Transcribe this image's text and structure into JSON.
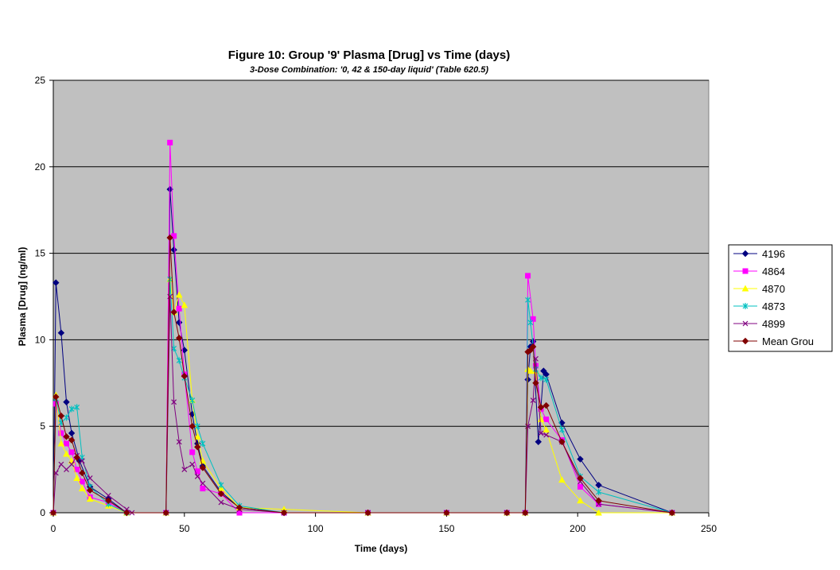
{
  "chart_data": {
    "type": "line",
    "title": "Figure 10: Group '9' Plasma [Drug] vs Time (days)",
    "subtitle": "3-Dose Combination: '0, 42 & 150-day  liquid' (Table 620.5)",
    "xlabel": "Time (days)",
    "ylabel": "Plasma [Drug] (ng/ml)",
    "xlim": [
      0,
      250
    ],
    "ylim": [
      0,
      25
    ],
    "x_ticks": [
      0,
      50,
      100,
      150,
      200,
      250
    ],
    "y_ticks": [
      0,
      5,
      10,
      15,
      20,
      25
    ],
    "x_tick_labels": [
      "0",
      "50",
      "100",
      "150",
      "200",
      "250"
    ],
    "y_tick_labels": [
      "0",
      "5",
      "10",
      "15",
      "20",
      "25"
    ],
    "grid": "horizontal major gridlines",
    "legend_position": "right",
    "plot_background": "#c0c0c0",
    "series": [
      {
        "name": "4196",
        "color": "#000080",
        "marker": "diamond",
        "points": [
          [
            0,
            0
          ],
          [
            1,
            13.3
          ],
          [
            3,
            10.4
          ],
          [
            5,
            6.4
          ],
          [
            7,
            4.6
          ],
          [
            10,
            3.0
          ],
          [
            14,
            1.5
          ],
          [
            21,
            0.8
          ],
          [
            28,
            0
          ],
          [
            43,
            0
          ],
          [
            44.5,
            18.7
          ],
          [
            46,
            15.2
          ],
          [
            48,
            11.0
          ],
          [
            50,
            9.4
          ],
          [
            53,
            5.7
          ],
          [
            55,
            4.0
          ],
          [
            57,
            2.7
          ],
          [
            64,
            1.2
          ],
          [
            71,
            0.3
          ],
          [
            88,
            0
          ],
          [
            120,
            0
          ],
          [
            150,
            0
          ],
          [
            173,
            0
          ],
          [
            180,
            0
          ],
          [
            181,
            7.7
          ],
          [
            182,
            9.6
          ],
          [
            183,
            9.9
          ],
          [
            185,
            4.1
          ],
          [
            187,
            8.2
          ],
          [
            188,
            8.0
          ],
          [
            194,
            5.2
          ],
          [
            201,
            3.1
          ],
          [
            208,
            1.6
          ],
          [
            236,
            0
          ]
        ]
      },
      {
        "name": "4864",
        "color": "#ff00ff",
        "marker": "square",
        "points": [
          [
            0,
            0
          ],
          [
            1,
            6.3
          ],
          [
            3,
            4.6
          ],
          [
            5,
            4.0
          ],
          [
            7,
            3.5
          ],
          [
            9,
            2.5
          ],
          [
            11,
            1.8
          ],
          [
            14,
            0.9
          ],
          [
            21,
            0.6
          ],
          [
            28,
            0
          ],
          [
            43,
            0
          ],
          [
            44.5,
            21.4
          ],
          [
            46,
            16.0
          ],
          [
            48,
            11.8
          ],
          [
            50,
            8.0
          ],
          [
            53,
            3.5
          ],
          [
            55,
            2.4
          ],
          [
            57,
            1.4
          ],
          [
            64,
            1.1
          ],
          [
            71,
            0
          ],
          [
            88,
            0
          ],
          [
            120,
            0
          ],
          [
            150,
            0
          ],
          [
            173,
            0
          ],
          [
            180,
            0
          ],
          [
            181,
            13.7
          ],
          [
            183,
            11.2
          ],
          [
            184,
            8.5
          ],
          [
            186,
            6.0
          ],
          [
            188,
            5.4
          ],
          [
            194,
            4.2
          ],
          [
            201,
            1.5
          ],
          [
            208,
            0.5
          ],
          [
            236,
            0
          ]
        ]
      },
      {
        "name": "4870",
        "color": "#ffff00",
        "marker": "triangle",
        "points": [
          [
            0,
            0
          ],
          [
            1,
            6.8
          ],
          [
            3,
            4.0
          ],
          [
            5,
            3.4
          ],
          [
            7,
            3.0
          ],
          [
            9,
            2.0
          ],
          [
            11,
            1.4
          ],
          [
            14,
            0.8
          ],
          [
            21,
            0.4
          ],
          [
            28,
            0
          ],
          [
            43,
            0
          ],
          [
            44.5,
            13.5
          ],
          [
            46,
            11.6
          ],
          [
            48,
            12.6
          ],
          [
            50,
            12.0
          ],
          [
            53,
            6.5
          ],
          [
            55,
            4.4
          ],
          [
            57,
            3.0
          ],
          [
            64,
            1.4
          ],
          [
            71,
            0.3
          ],
          [
            88,
            0.2
          ],
          [
            120,
            0
          ],
          [
            150,
            0
          ],
          [
            173,
            0
          ],
          [
            180,
            0
          ],
          [
            181,
            8.3
          ],
          [
            182,
            8.2
          ],
          [
            184,
            8.2
          ],
          [
            186,
            5.4
          ],
          [
            188,
            4.8
          ],
          [
            194,
            1.9
          ],
          [
            201,
            0.7
          ],
          [
            208,
            0
          ],
          [
            236,
            0
          ]
        ]
      },
      {
        "name": "4873",
        "color": "#00c0c0",
        "marker": "star",
        "points": [
          [
            0,
            0
          ],
          [
            1,
            6.6
          ],
          [
            3,
            5.2
          ],
          [
            5,
            5.5
          ],
          [
            7,
            6.0
          ],
          [
            9,
            6.1
          ],
          [
            11,
            3.2
          ],
          [
            14,
            1.5
          ],
          [
            21,
            0.5
          ],
          [
            28,
            0
          ],
          [
            43,
            0
          ],
          [
            44.5,
            13.5
          ],
          [
            46,
            9.5
          ],
          [
            48,
            8.8
          ],
          [
            50,
            7.8
          ],
          [
            53,
            6.5
          ],
          [
            55,
            5.0
          ],
          [
            57,
            4.0
          ],
          [
            64,
            1.6
          ],
          [
            71,
            0.4
          ],
          [
            88,
            0
          ],
          [
            120,
            0
          ],
          [
            150,
            0
          ],
          [
            173,
            0
          ],
          [
            180,
            0
          ],
          [
            181,
            12.3
          ],
          [
            182,
            11.0
          ],
          [
            184,
            8.3
          ],
          [
            186,
            7.8
          ],
          [
            188,
            7.7
          ],
          [
            194,
            4.8
          ],
          [
            201,
            2.1
          ],
          [
            208,
            1.2
          ],
          [
            236,
            0
          ]
        ]
      },
      {
        "name": "4899",
        "color": "#800080",
        "marker": "x",
        "points": [
          [
            0,
            0
          ],
          [
            1,
            2.3
          ],
          [
            3,
            2.8
          ],
          [
            5,
            2.5
          ],
          [
            7,
            2.8
          ],
          [
            9,
            3.3
          ],
          [
            11,
            3.0
          ],
          [
            14,
            2.0
          ],
          [
            21,
            1.0
          ],
          [
            28,
            0.2
          ],
          [
            30,
            0
          ],
          [
            43,
            0
          ],
          [
            44.5,
            12.5
          ],
          [
            46,
            6.4
          ],
          [
            48,
            4.1
          ],
          [
            50,
            2.5
          ],
          [
            53,
            2.8
          ],
          [
            55,
            2.1
          ],
          [
            57,
            1.7
          ],
          [
            64,
            0.6
          ],
          [
            71,
            0.2
          ],
          [
            88,
            0
          ],
          [
            120,
            0
          ],
          [
            150,
            0
          ],
          [
            173,
            0
          ],
          [
            180,
            0
          ],
          [
            181,
            5.0
          ],
          [
            183,
            6.5
          ],
          [
            184,
            8.9
          ],
          [
            186,
            4.6
          ],
          [
            188,
            4.5
          ],
          [
            194,
            4.1
          ],
          [
            201,
            1.8
          ],
          [
            208,
            0.5
          ],
          [
            236,
            0
          ]
        ]
      },
      {
        "name": "Mean Grou",
        "color": "#800000",
        "marker": "diamond",
        "points": [
          [
            0,
            0
          ],
          [
            1,
            6.7
          ],
          [
            3,
            5.6
          ],
          [
            5,
            4.4
          ],
          [
            7,
            4.2
          ],
          [
            9,
            3.2
          ],
          [
            11,
            2.3
          ],
          [
            14,
            1.3
          ],
          [
            21,
            0.7
          ],
          [
            28,
            0
          ],
          [
            43,
            0
          ],
          [
            44.5,
            15.9
          ],
          [
            46,
            11.6
          ],
          [
            48,
            10.1
          ],
          [
            50,
            7.9
          ],
          [
            53,
            5.0
          ],
          [
            55,
            3.8
          ],
          [
            57,
            2.6
          ],
          [
            64,
            1.1
          ],
          [
            71,
            0.3
          ],
          [
            88,
            0
          ],
          [
            120,
            0
          ],
          [
            150,
            0
          ],
          [
            173,
            0
          ],
          [
            180,
            0
          ],
          [
            181,
            9.3
          ],
          [
            182,
            9.4
          ],
          [
            183,
            9.6
          ],
          [
            184,
            7.5
          ],
          [
            186,
            6.1
          ],
          [
            188,
            6.2
          ],
          [
            194,
            4.1
          ],
          [
            201,
            2.0
          ],
          [
            208,
            0.7
          ],
          [
            236,
            0
          ]
        ]
      }
    ]
  }
}
